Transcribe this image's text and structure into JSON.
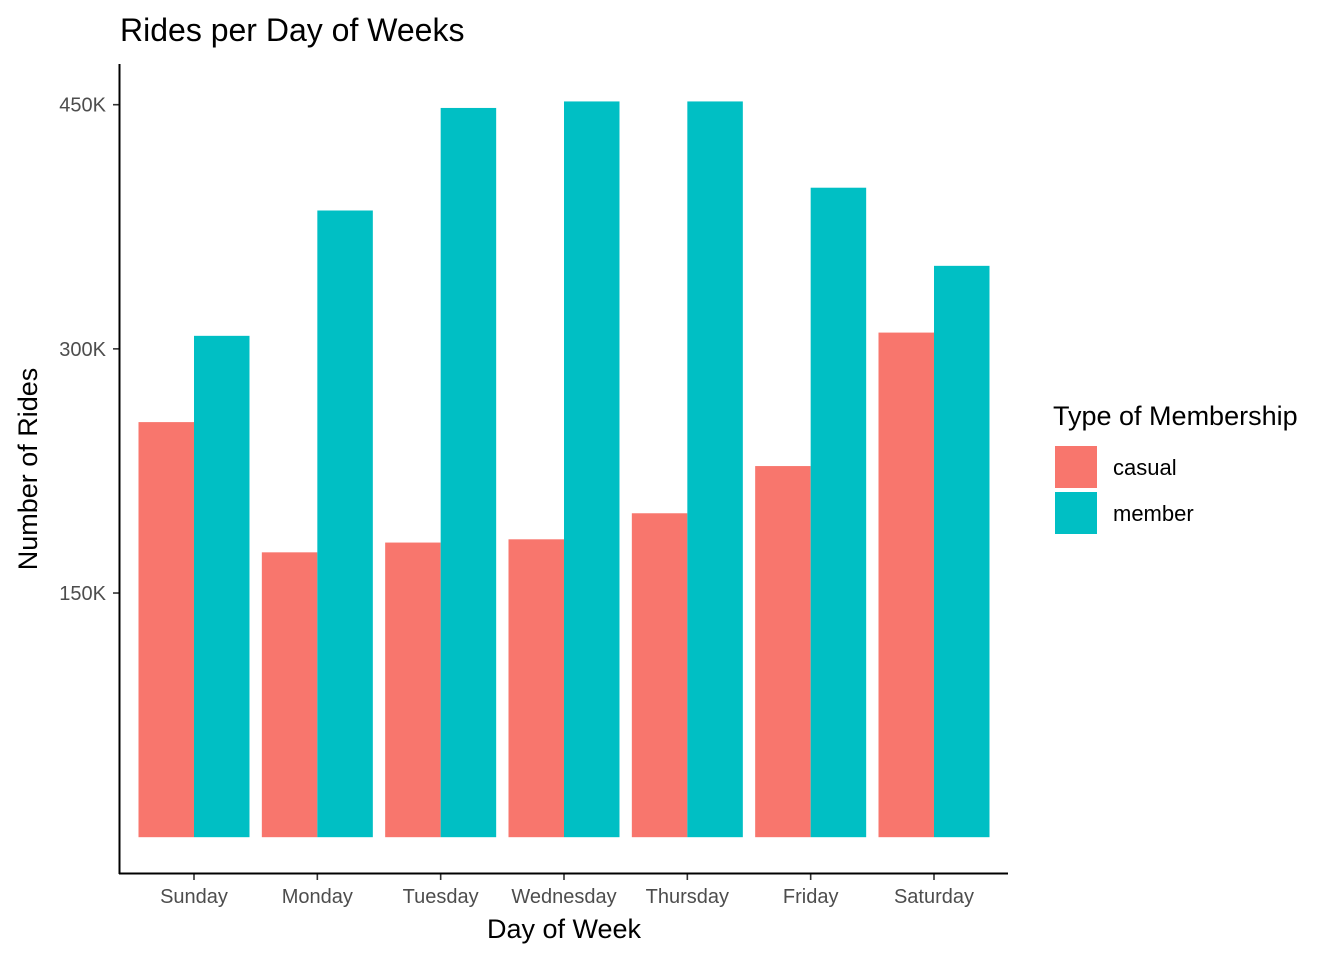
{
  "chart_data": {
    "type": "bar",
    "title": "Rides per Day of Weeks",
    "xlabel": "Day of Week",
    "ylabel": "Number of Rides",
    "categories": [
      "Sunday",
      "Monday",
      "Tuesday",
      "Wednesday",
      "Thursday",
      "Friday",
      "Saturday"
    ],
    "series": [
      {
        "name": "casual",
        "color": "#F8766D",
        "values": [
          255000,
          175000,
          181000,
          183000,
          199000,
          228000,
          310000
        ]
      },
      {
        "name": "member",
        "color": "#00BFC4",
        "values": [
          308000,
          385000,
          448000,
          452000,
          452000,
          399000,
          351000
        ]
      }
    ],
    "ylim": [
      -22000,
      475000
    ],
    "yticks": [
      150000,
      300000,
      450000
    ],
    "ytick_labels": [
      "150K",
      "300K",
      "450K"
    ],
    "legend": {
      "title": "Type of Membership",
      "position": "right"
    },
    "grid": false
  }
}
